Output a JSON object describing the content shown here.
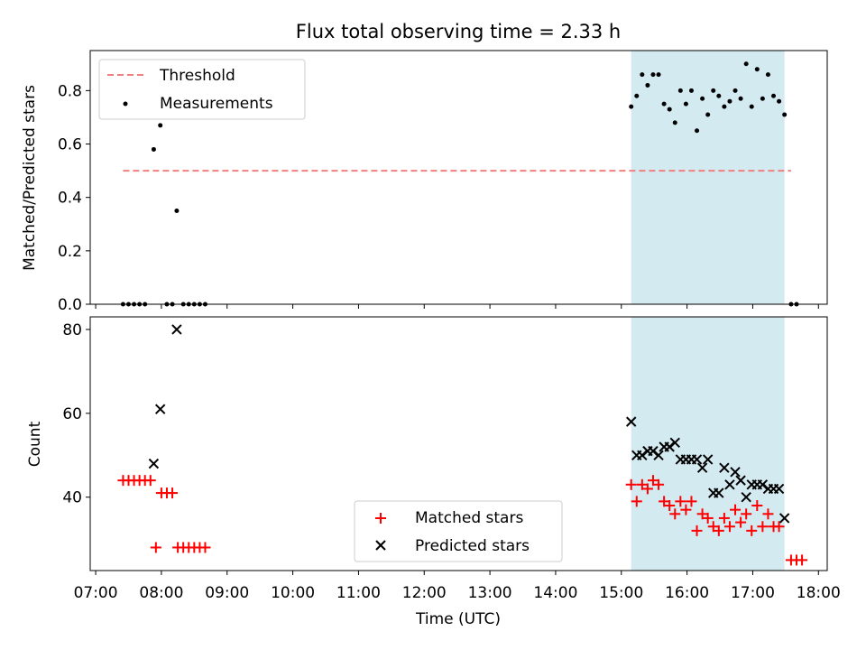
{
  "chart_data": [
    {
      "type": "scatter",
      "title": "Flux total observing time = 2.33 h",
      "ylabel": "Matched/Predicted stars",
      "ylim": [
        0,
        0.95
      ],
      "xlim": [
        "06:55",
        "18:08"
      ],
      "yticks": [
        "0.0",
        "0.2",
        "0.4",
        "0.6",
        "0.8"
      ],
      "highlight_span": [
        "15:09",
        "17:29"
      ],
      "legend_position": "upper-left",
      "threshold": {
        "name": "Threshold",
        "value": 0.5,
        "x": [
          "07:25",
          "17:35"
        ]
      },
      "series": [
        {
          "name": "Measurements",
          "points": [
            {
              "x": "07:25",
              "y": 0
            },
            {
              "x": "07:30",
              "y": 0
            },
            {
              "x": "07:35",
              "y": 0
            },
            {
              "x": "07:40",
              "y": 0
            },
            {
              "x": "07:45",
              "y": 0
            },
            {
              "x": "07:53",
              "y": 0.58
            },
            {
              "x": "07:59",
              "y": 0.67
            },
            {
              "x": "08:05",
              "y": 0
            },
            {
              "x": "08:10",
              "y": 0
            },
            {
              "x": "08:14",
              "y": 0.35
            },
            {
              "x": "08:20",
              "y": 0
            },
            {
              "x": "08:25",
              "y": 0
            },
            {
              "x": "08:30",
              "y": 0
            },
            {
              "x": "08:35",
              "y": 0
            },
            {
              "x": "08:40",
              "y": 0
            },
            {
              "x": "15:09",
              "y": 0.74
            },
            {
              "x": "15:14",
              "y": 0.78
            },
            {
              "x": "15:19",
              "y": 0.86
            },
            {
              "x": "15:24",
              "y": 0.82
            },
            {
              "x": "15:29",
              "y": 0.86
            },
            {
              "x": "15:34",
              "y": 0.86
            },
            {
              "x": "15:39",
              "y": 0.75
            },
            {
              "x": "15:44",
              "y": 0.73
            },
            {
              "x": "15:49",
              "y": 0.68
            },
            {
              "x": "15:54",
              "y": 0.8
            },
            {
              "x": "15:59",
              "y": 0.75
            },
            {
              "x": "16:04",
              "y": 0.8
            },
            {
              "x": "16:09",
              "y": 0.65
            },
            {
              "x": "16:14",
              "y": 0.77
            },
            {
              "x": "16:19",
              "y": 0.71
            },
            {
              "x": "16:24",
              "y": 0.8
            },
            {
              "x": "16:29",
              "y": 0.78
            },
            {
              "x": "16:34",
              "y": 0.74
            },
            {
              "x": "16:39",
              "y": 0.76
            },
            {
              "x": "16:44",
              "y": 0.8
            },
            {
              "x": "16:49",
              "y": 0.77
            },
            {
              "x": "16:54",
              "y": 0.9
            },
            {
              "x": "16:59",
              "y": 0.74
            },
            {
              "x": "17:04",
              "y": 0.88
            },
            {
              "x": "17:09",
              "y": 0.77
            },
            {
              "x": "17:14",
              "y": 0.86
            },
            {
              "x": "17:19",
              "y": 0.78
            },
            {
              "x": "17:24",
              "y": 0.76
            },
            {
              "x": "17:29",
              "y": 0.71
            },
            {
              "x": "17:35",
              "y": 0
            },
            {
              "x": "17:40",
              "y": 0
            }
          ]
        }
      ]
    },
    {
      "type": "scatter",
      "ylabel": "Count",
      "xlabel": "Time (UTC)",
      "ylim": [
        22.5,
        83
      ],
      "xlim": [
        "06:55",
        "18:08"
      ],
      "yticks": [
        "40",
        "60",
        "80"
      ],
      "xticks": [
        "07:00",
        "08:00",
        "09:00",
        "10:00",
        "11:00",
        "12:00",
        "13:00",
        "14:00",
        "15:00",
        "16:00",
        "17:00",
        "18:00"
      ],
      "highlight_span": [
        "15:09",
        "17:29"
      ],
      "legend_position": "lower-center",
      "series": [
        {
          "name": "Matched stars",
          "points": [
            {
              "x": "07:25",
              "y": 44
            },
            {
              "x": "07:30",
              "y": 44
            },
            {
              "x": "07:35",
              "y": 44
            },
            {
              "x": "07:40",
              "y": 44
            },
            {
              "x": "07:45",
              "y": 44
            },
            {
              "x": "07:50",
              "y": 44
            },
            {
              "x": "07:55",
              "y": 28
            },
            {
              "x": "08:00",
              "y": 41
            },
            {
              "x": "08:05",
              "y": 41
            },
            {
              "x": "08:10",
              "y": 41
            },
            {
              "x": "08:15",
              "y": 28
            },
            {
              "x": "08:20",
              "y": 28
            },
            {
              "x": "08:25",
              "y": 28
            },
            {
              "x": "08:30",
              "y": 28
            },
            {
              "x": "08:35",
              "y": 28
            },
            {
              "x": "08:40",
              "y": 28
            },
            {
              "x": "15:09",
              "y": 43
            },
            {
              "x": "15:14",
              "y": 39
            },
            {
              "x": "15:19",
              "y": 43
            },
            {
              "x": "15:24",
              "y": 42
            },
            {
              "x": "15:29",
              "y": 44
            },
            {
              "x": "15:34",
              "y": 43
            },
            {
              "x": "15:39",
              "y": 39
            },
            {
              "x": "15:44",
              "y": 38
            },
            {
              "x": "15:49",
              "y": 36
            },
            {
              "x": "15:54",
              "y": 39
            },
            {
              "x": "15:59",
              "y": 37
            },
            {
              "x": "16:04",
              "y": 39
            },
            {
              "x": "16:09",
              "y": 32
            },
            {
              "x": "16:14",
              "y": 36
            },
            {
              "x": "16:19",
              "y": 35
            },
            {
              "x": "16:24",
              "y": 33
            },
            {
              "x": "16:29",
              "y": 32
            },
            {
              "x": "16:34",
              "y": 35
            },
            {
              "x": "16:39",
              "y": 33
            },
            {
              "x": "16:44",
              "y": 37
            },
            {
              "x": "16:49",
              "y": 34
            },
            {
              "x": "16:54",
              "y": 36
            },
            {
              "x": "16:59",
              "y": 32
            },
            {
              "x": "17:04",
              "y": 38
            },
            {
              "x": "17:09",
              "y": 33
            },
            {
              "x": "17:14",
              "y": 36
            },
            {
              "x": "17:19",
              "y": 33
            },
            {
              "x": "17:24",
              "y": 33
            },
            {
              "x": "17:35",
              "y": 25
            },
            {
              "x": "17:40",
              "y": 25
            },
            {
              "x": "17:45",
              "y": 25
            }
          ]
        },
        {
          "name": "Predicted stars",
          "points": [
            {
              "x": "07:53",
              "y": 48
            },
            {
              "x": "07:59",
              "y": 61
            },
            {
              "x": "08:14",
              "y": 80
            },
            {
              "x": "15:09",
              "y": 58
            },
            {
              "x": "15:14",
              "y": 50
            },
            {
              "x": "15:19",
              "y": 50
            },
            {
              "x": "15:24",
              "y": 51
            },
            {
              "x": "15:29",
              "y": 51
            },
            {
              "x": "15:34",
              "y": 50
            },
            {
              "x": "15:39",
              "y": 52
            },
            {
              "x": "15:44",
              "y": 52
            },
            {
              "x": "15:49",
              "y": 53
            },
            {
              "x": "15:54",
              "y": 49
            },
            {
              "x": "15:59",
              "y": 49
            },
            {
              "x": "16:04",
              "y": 49
            },
            {
              "x": "16:09",
              "y": 49
            },
            {
              "x": "16:14",
              "y": 47
            },
            {
              "x": "16:19",
              "y": 49
            },
            {
              "x": "16:24",
              "y": 41
            },
            {
              "x": "16:29",
              "y": 41
            },
            {
              "x": "16:34",
              "y": 47
            },
            {
              "x": "16:39",
              "y": 43
            },
            {
              "x": "16:44",
              "y": 46
            },
            {
              "x": "16:49",
              "y": 44
            },
            {
              "x": "16:54",
              "y": 40
            },
            {
              "x": "16:59",
              "y": 43
            },
            {
              "x": "17:04",
              "y": 43
            },
            {
              "x": "17:09",
              "y": 43
            },
            {
              "x": "17:14",
              "y": 42
            },
            {
              "x": "17:19",
              "y": 42
            },
            {
              "x": "17:24",
              "y": 42
            },
            {
              "x": "17:29",
              "y": 35
            }
          ]
        }
      ]
    }
  ],
  "colors": {
    "span": "#d4eaf1",
    "threshold": "#f08080",
    "measurements": "#000000",
    "matched": "#ff0000",
    "predicted": "#000000"
  }
}
